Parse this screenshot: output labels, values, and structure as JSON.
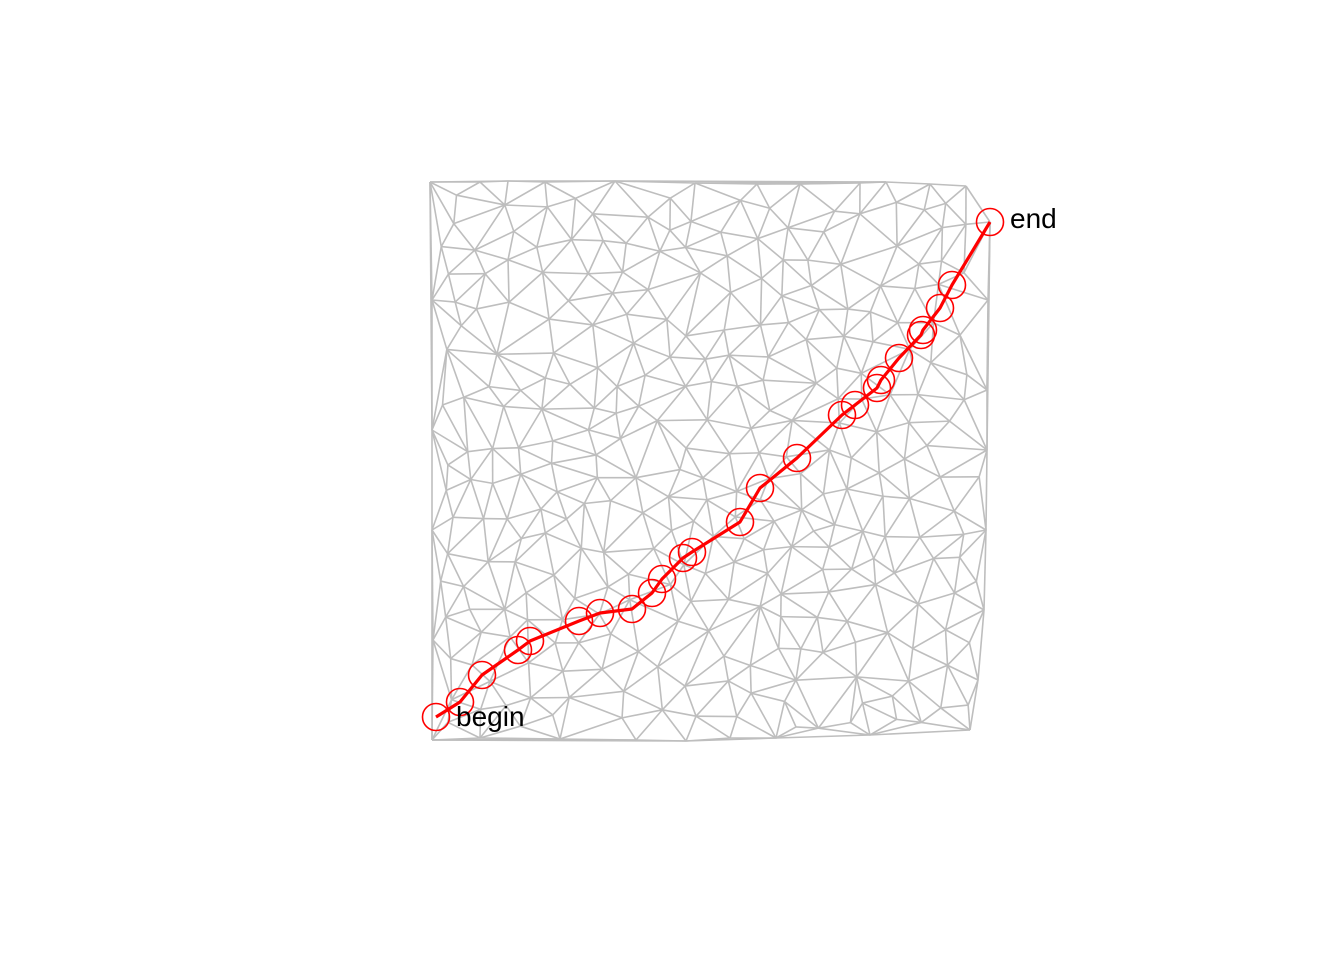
{
  "diagram": {
    "labels": {
      "start": "begin",
      "finish": "end"
    },
    "colors": {
      "mesh": "#bebebe",
      "path": "#ff0000",
      "label": "#000000",
      "background": "#ffffff"
    }
  }
}
